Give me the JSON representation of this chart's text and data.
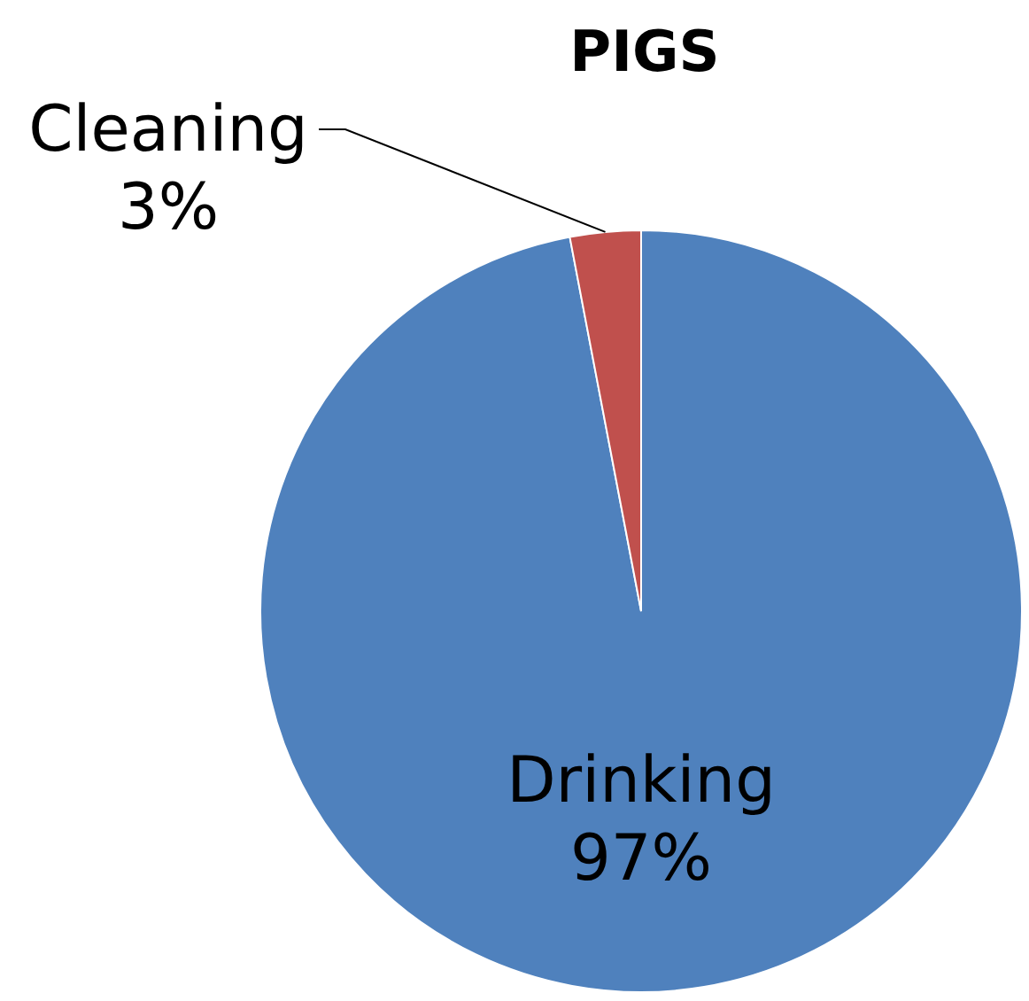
{
  "chart_data": {
    "type": "pie",
    "title": "PIGS",
    "categories": [
      "Drinking",
      "Cleaning"
    ],
    "values": [
      97,
      3
    ],
    "colors": [
      "#4f81bd",
      "#c0504d"
    ],
    "value_labels": [
      "97%",
      "3%"
    ]
  }
}
